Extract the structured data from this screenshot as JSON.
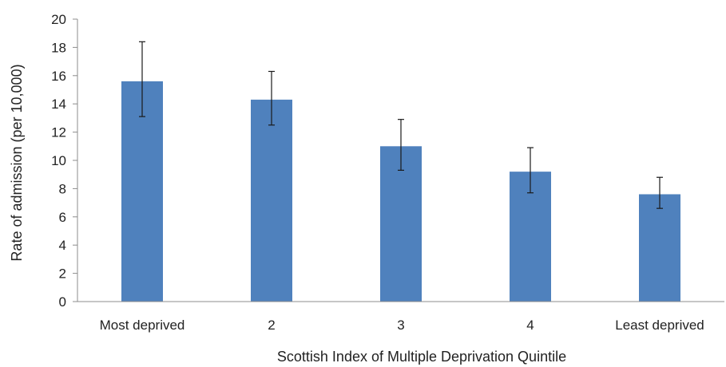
{
  "chart_data": {
    "type": "bar",
    "title": "",
    "xlabel": "Scottish Index of Multiple Deprivation Quintile",
    "ylabel": "Rate of admission (per 10,000)",
    "categories": [
      "Most deprived",
      "2",
      "3",
      "4",
      "Least deprived"
    ],
    "values": [
      15.6,
      14.3,
      11.0,
      9.2,
      7.6
    ],
    "error_low": [
      13.1,
      12.5,
      9.3,
      7.7,
      6.6
    ],
    "error_high": [
      18.4,
      16.3,
      12.9,
      10.9,
      8.8
    ],
    "ylim": [
      0,
      20
    ],
    "yticks": [
      0,
      2,
      4,
      6,
      8,
      10,
      12,
      14,
      16,
      18,
      20
    ],
    "grid": false,
    "legend": "none",
    "bar_color": "#4f81bd"
  }
}
